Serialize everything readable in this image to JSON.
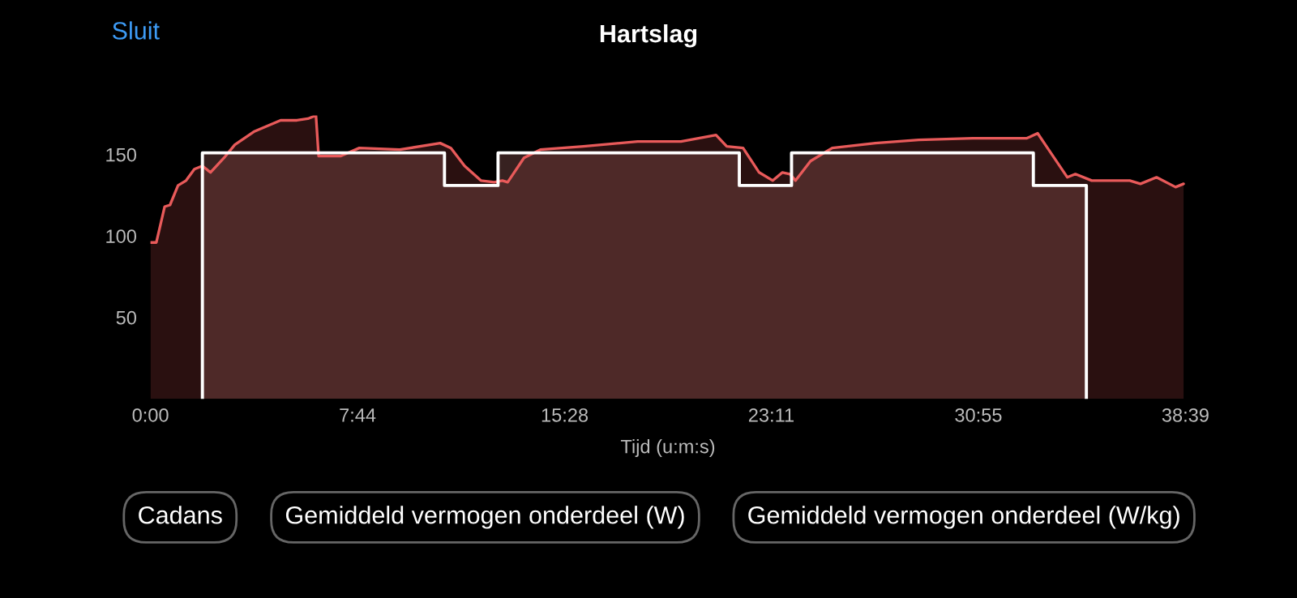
{
  "chart_data": {
    "type": "area",
    "title": "Hartslag",
    "xlabel": "Tijd (u:m:s)",
    "annotations": [
      "Sluit",
      "Cadans",
      "Gemiddeld vermogen onderdeel (W)",
      "Gemiddeld vermogen onderdeel (W/kg)"
    ],
    "xlim": [
      0,
      38.65
    ],
    "ylim": [
      0,
      174
    ],
    "xticks": [
      {
        "value": 0,
        "label": "0:00"
      },
      {
        "value": 7.733,
        "label": "7:44"
      },
      {
        "value": 15.467,
        "label": "15:28"
      },
      {
        "value": 23.183,
        "label": "23:11"
      },
      {
        "value": 30.917,
        "label": "30:55"
      },
      {
        "value": 38.65,
        "label": "38:39"
      }
    ],
    "yticks": [
      50,
      100,
      150
    ],
    "grid": false,
    "legend": false,
    "series": [
      {
        "color": "#e85a5a",
        "x": [
          0,
          0.22,
          0.53,
          0.73,
          1.03,
          1.33,
          1.64,
          1.94,
          2.24,
          2.75,
          3.15,
          3.86,
          4.86,
          5.47,
          5.88,
          6.18,
          6.28,
          7.09,
          7.8,
          9.31,
          10.82,
          11.22,
          11.73,
          12.34,
          12.84,
          13.14,
          13.34,
          13.95,
          14.56,
          16.17,
          18.19,
          19.81,
          21.12,
          21.52,
          22.13,
          22.73,
          23.24,
          23.6,
          23.88,
          24.09,
          24.65,
          25.46,
          27.07,
          28.69,
          30.71,
          32.73,
          33.13,
          33.54,
          34.24,
          34.54,
          35.15,
          36.57,
          36.97,
          37.57,
          38.28,
          38.58
        ],
        "values": [
          96,
          96,
          118,
          119,
          131,
          134,
          141,
          143,
          139,
          148,
          156,
          164,
          171,
          171,
          172,
          174,
          149,
          149,
          154,
          153,
          157,
          154,
          143,
          134,
          133,
          134,
          133,
          148,
          153,
          155,
          158,
          158,
          162,
          155,
          154,
          139,
          134,
          139,
          138,
          134,
          146,
          154,
          157,
          159,
          160,
          160,
          163,
          153,
          136,
          138,
          134,
          134,
          132,
          136,
          130,
          132
        ]
      },
      {
        "type": "step",
        "color": "#ffffff",
        "x": [
          1.94,
          1.94,
          10.98,
          12.98,
          21.99,
          23.94,
          32.97,
          34.95
        ],
        "values": [
          0,
          151,
          131,
          151,
          131,
          151,
          131,
          0
        ]
      }
    ]
  }
}
